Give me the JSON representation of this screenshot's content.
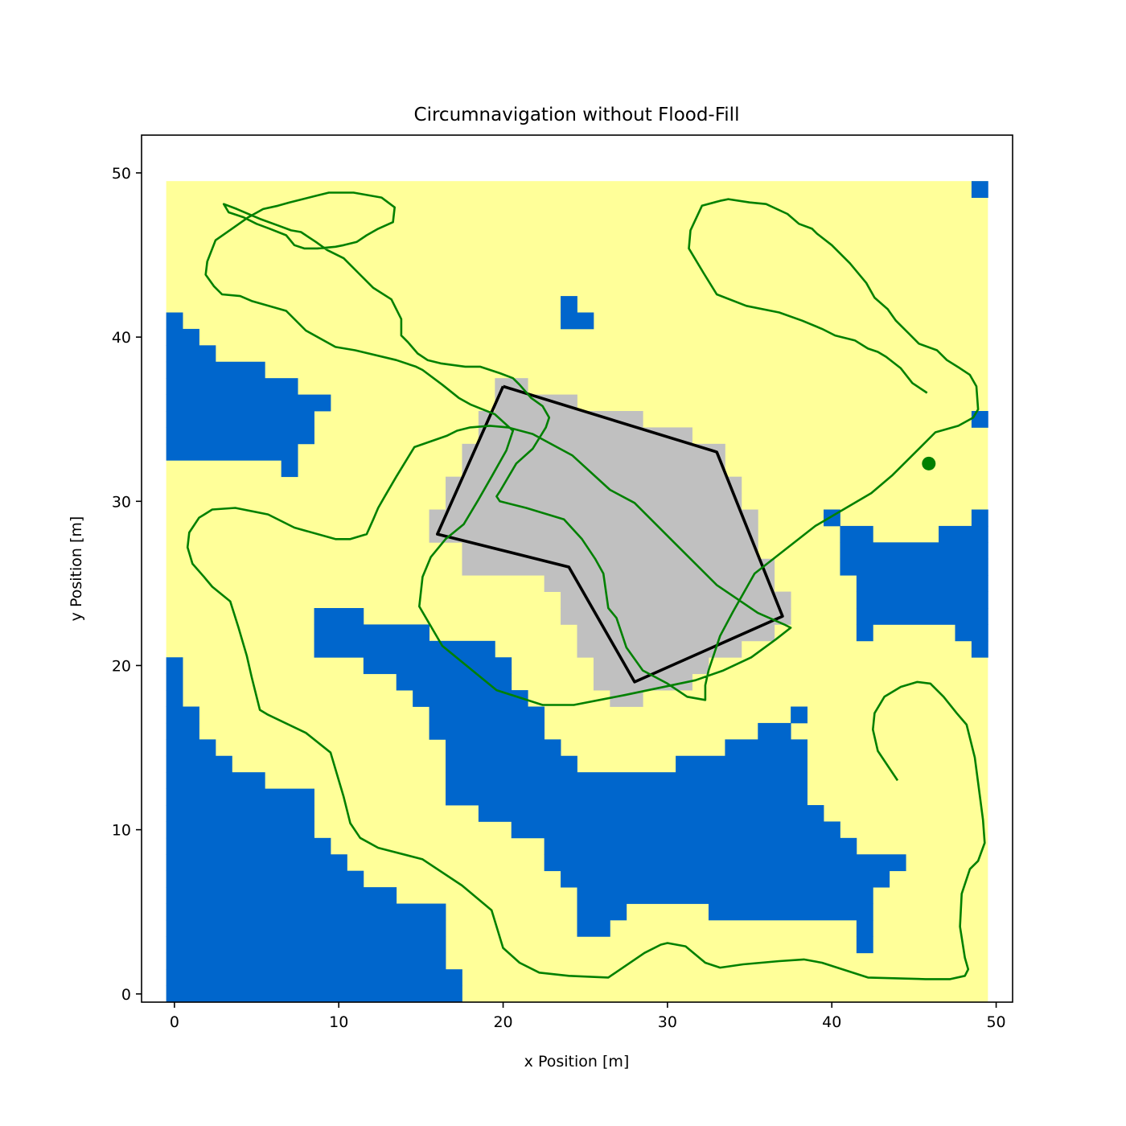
{
  "chart_data": {
    "type": "heatmap",
    "title": "Circumnavigation without Flood-Fill",
    "xlabel": "x Position [m]",
    "ylabel": "y Position [m]",
    "xlim": [
      -2,
      51
    ],
    "ylim": [
      -0.5,
      52.3
    ],
    "xticks": [
      0,
      10,
      20,
      30,
      40,
      50
    ],
    "yticks": [
      0,
      10,
      20,
      30,
      40,
      50
    ],
    "grid": false,
    "colors": {
      "free": "#ffff99",
      "water": "#0066cc",
      "obstacle": "#c0c0c0",
      "polygon": "#000000",
      "path": "#008000"
    },
    "grid_map": {
      "x_range": [
        0,
        49
      ],
      "y_range": [
        0,
        49
      ],
      "water_rows": {
        "49": [
          [
            49,
            49
          ]
        ],
        "41": [
          [
            0,
            0
          ]
        ],
        "40": [
          [
            0,
            1
          ]
        ],
        "39": [
          [
            0,
            2
          ]
        ],
        "38": [
          [
            0,
            5
          ]
        ],
        "37": [
          [
            0,
            7
          ]
        ],
        "36": [
          [
            0,
            9
          ]
        ],
        "35": [
          [
            0,
            8
          ],
          [
            49,
            49
          ]
        ],
        "34": [
          [
            0,
            8
          ]
        ],
        "33": [
          [
            0,
            7
          ]
        ],
        "32": [
          [
            7,
            7
          ]
        ],
        "29": [
          [
            40,
            40
          ],
          [
            49,
            49
          ]
        ],
        "28": [
          [
            41,
            42
          ],
          [
            47,
            49
          ]
        ],
        "27": [
          [
            41,
            49
          ]
        ],
        "26": [
          [
            41,
            49
          ]
        ],
        "25": [
          [
            42,
            49
          ]
        ],
        "24": [
          [
            42,
            49
          ]
        ],
        "23": [
          [
            42,
            49
          ]
        ],
        "22": [
          [
            42,
            42
          ],
          [
            48,
            49
          ]
        ],
        "21": [
          [
            49,
            49
          ]
        ],
        "20": [
          [
            0,
            0
          ]
        ],
        "19": [
          [
            0,
            0
          ]
        ],
        "18": [
          [
            0,
            0
          ]
        ],
        "17": [
          [
            0,
            1
          ]
        ],
        "16": [
          [
            0,
            1
          ]
        ],
        "15": [
          [
            0,
            2
          ]
        ],
        "14": [
          [
            0,
            3
          ]
        ],
        "13": [
          [
            0,
            5
          ]
        ],
        "12": [
          [
            0,
            8
          ]
        ],
        "11": [
          [
            0,
            8
          ]
        ],
        "10": [
          [
            0,
            8
          ]
        ],
        "9": [
          [
            0,
            9
          ]
        ],
        "8": [
          [
            0,
            10
          ]
        ],
        "7": [
          [
            0,
            11
          ]
        ],
        "6": [
          [
            0,
            13
          ]
        ],
        "5": [
          [
            0,
            16
          ]
        ],
        "4": [
          [
            0,
            16
          ]
        ],
        "3": [
          [
            0,
            16
          ]
        ],
        "2": [
          [
            0,
            16
          ]
        ],
        "1": [
          [
            0,
            17
          ]
        ],
        "0": [
          [
            0,
            17
          ]
        ]
      },
      "water_extra_rows": {
        "42": [
          [
            24,
            24
          ]
        ],
        "41": [
          [
            24,
            25
          ]
        ],
        "23": [
          [
            9,
            11
          ]
        ],
        "22": [
          [
            9,
            11
          ],
          [
            12,
            15
          ]
        ],
        "21": [
          [
            9,
            19
          ]
        ],
        "20": [
          [
            12,
            20
          ]
        ],
        "19": [
          [
            14,
            20
          ]
        ],
        "18": [
          [
            15,
            21
          ]
        ],
        "17": [
          [
            16,
            22
          ],
          [
            38,
            38
          ]
        ],
        "16": [
          [
            16,
            22
          ],
          [
            36,
            37
          ]
        ],
        "15": [
          [
            17,
            23
          ],
          [
            34,
            38
          ]
        ],
        "14": [
          [
            17,
            24
          ],
          [
            31,
            38
          ]
        ],
        "13": [
          [
            17,
            30
          ],
          [
            31,
            38
          ]
        ],
        "12": [
          [
            17,
            38
          ]
        ],
        "11": [
          [
            19,
            39
          ]
        ],
        "10": [
          [
            21,
            40
          ]
        ],
        "9": [
          [
            23,
            41
          ]
        ],
        "8": [
          [
            23,
            44
          ]
        ],
        "7": [
          [
            24,
            43
          ]
        ],
        "6": [
          [
            25,
            42
          ]
        ],
        "5": [
          [
            25,
            27
          ],
          [
            33,
            42
          ]
        ],
        "4": [
          [
            25,
            26
          ],
          [
            42,
            42
          ]
        ],
        "3": [
          [
            42,
            42
          ]
        ]
      },
      "obstacle_rows": {
        "37": [
          [
            20,
            21
          ]
        ],
        "36": [
          [
            20,
            24
          ]
        ],
        "35": [
          [
            19,
            28
          ]
        ],
        "34": [
          [
            19,
            31
          ]
        ],
        "33": [
          [
            18,
            33
          ]
        ],
        "32": [
          [
            18,
            33
          ]
        ],
        "31": [
          [
            17,
            34
          ]
        ],
        "30": [
          [
            17,
            34
          ]
        ],
        "29": [
          [
            16,
            35
          ]
        ],
        "28": [
          [
            16,
            35
          ]
        ],
        "27": [
          [
            18,
            35
          ]
        ],
        "26": [
          [
            18,
            36
          ]
        ],
        "25": [
          [
            23,
            36
          ]
        ],
        "24": [
          [
            24,
            37
          ]
        ],
        "23": [
          [
            24,
            37
          ]
        ],
        "22": [
          [
            25,
            36
          ]
        ],
        "21": [
          [
            25,
            34
          ]
        ],
        "20": [
          [
            26,
            32
          ]
        ],
        "19": [
          [
            26,
            31
          ]
        ],
        "18": [
          [
            27,
            28
          ]
        ]
      }
    },
    "obstacle_polygon": {
      "x": [
        20,
        33,
        37,
        28,
        24,
        16,
        20
      ],
      "y": [
        37,
        33,
        23,
        19,
        26,
        28,
        37
      ]
    },
    "path": {
      "x": [
        44,
        42.8,
        42.5,
        42.6,
        43.2,
        44.2,
        45.2,
        46,
        46.8,
        47.6,
        48.2,
        48.7,
        49.2,
        49.3,
        48.9,
        48.4,
        47.9,
        47.8,
        48.1,
        48.3,
        48.1,
        47.2,
        45.7,
        42.2,
        39.4,
        38.3,
        36.8,
        34.6,
        33.2,
        32.3,
        31.1,
        30,
        29.6,
        28.6,
        26.4,
        24,
        22.2,
        21,
        20,
        19.3,
        17.5,
        15.1,
        12.4,
        11.3,
        10.7,
        10.3,
        9.5,
        8,
        5.7,
        5.2,
        4.7,
        4.4,
        3.9,
        3.4,
        2.3,
        1.8,
        1.1,
        0.8,
        0.9,
        1.5,
        2.3,
        3.7,
        5.7,
        7.3,
        9.8,
        10.7,
        11.7,
        12.1,
        12.4,
        12.8,
        13.5,
        14.6,
        16.6,
        17.2,
        18,
        19.2,
        20.3,
        21.8,
        24.2,
        26.5,
        28,
        30.5,
        33,
        35.5,
        37.1,
        37.5,
        36.6,
        35.1,
        33.4,
        31.7,
        27.4,
        24.3,
        22.4,
        19.6,
        16.3,
        14.9,
        15.1,
        15.6,
        16.5,
        17.6,
        18.5,
        19.3,
        20.2,
        20.6,
        19.5,
        18,
        17.3,
        16.3,
        15.1,
        14.7,
        13.5,
        11,
        9.8,
        8,
        6.8,
        4.7,
        4,
        2.9,
        2.4,
        1.9,
        2,
        2.5,
        3.5,
        4.5,
        5.4,
        6.3,
        7,
        8.6,
        9.4,
        10.9,
        12.6,
        13.4,
        13.3,
        12.4,
        11.7,
        11.1,
        10.3,
        9.8,
        8.7,
        7.9,
        7.3,
        6.8,
        5.8,
        5,
        4.2,
        3.6,
        3.3,
        3,
        3.8,
        5.2,
        6.3,
        7.1,
        7.7,
        8.6,
        9.3,
        10.3,
        11.2,
        12.1,
        13.2,
        13.8,
        13.8,
        14.2,
        14.8,
        15.4,
        16.2,
        17.7,
        18.6,
        19.8,
        20.6,
        21,
        21.7,
        22.4,
        22.8,
        22.6,
        21.8,
        20.8,
        19.8,
        19.6,
        19.8,
        21.4,
        23.7,
        24.8,
        25.6,
        26.1,
        26.4,
        26.9,
        27.5,
        28.5,
        30,
        31.2,
        32.3,
        32.3,
        32.3,
        32.5,
        33.2,
        34,
        35.3,
        39,
        42.4,
        43.7,
        45.4,
        46.3,
        47.7,
        48.6,
        48.9,
        48.8,
        48.4,
        47.8,
        47,
        46.4,
        45.3,
        44.7,
        43.9,
        43.4,
        42.6,
        42.1,
        41.1,
        40,
        39.1,
        38.8,
        38,
        37.3,
        36,
        35,
        33.7,
        33.2,
        32.1,
        31.4,
        31.3,
        32.2,
        33,
        34.8,
        36.8,
        38.2,
        39.4,
        40.2,
        41.4,
        42.2,
        42.8,
        43.3,
        44.2,
        44.9,
        45.8
      ],
      "y": [
        13,
        14.8,
        16.1,
        17.1,
        18.1,
        18.7,
        19,
        18.9,
        18.1,
        17.1,
        16.4,
        14.4,
        10.6,
        9.2,
        8.1,
        7.6,
        6.1,
        4.1,
        2.2,
        1.5,
        1.1,
        0.9,
        0.9,
        1,
        1.9,
        2.1,
        2,
        1.8,
        1.6,
        1.9,
        2.9,
        3.1,
        3,
        2.5,
        1,
        1.1,
        1.3,
        1.9,
        2.8,
        5.1,
        6.6,
        8.2,
        8.9,
        9.5,
        10.4,
        12,
        14.7,
        15.9,
        17,
        17.3,
        19.3,
        20.6,
        22.3,
        23.9,
        24.8,
        25.4,
        26.2,
        27.2,
        28.1,
        29,
        29.5,
        29.6,
        29.2,
        28.4,
        27.7,
        27.7,
        28,
        28.9,
        29.6,
        30.3,
        31.5,
        33.3,
        34,
        34.3,
        34.5,
        34.6,
        34.5,
        34.1,
        32.8,
        30.7,
        29.9,
        27.4,
        24.9,
        23.2,
        22.5,
        22.3,
        21.6,
        20.5,
        19.7,
        19.1,
        18.2,
        17.6,
        17.6,
        18.5,
        21.2,
        23.6,
        25.4,
        26.6,
        27.7,
        28.6,
        30.1,
        31.5,
        33.1,
        34.3,
        35.3,
        35.9,
        36.3,
        37.1,
        38,
        38.2,
        38.6,
        39.2,
        39.4,
        40.4,
        41.6,
        42.2,
        42.5,
        42.6,
        43.1,
        43.8,
        44.6,
        45.9,
        46.6,
        47.3,
        47.8,
        48,
        48.2,
        48.6,
        48.8,
        48.8,
        48.5,
        47.9,
        47,
        46.6,
        46.2,
        45.8,
        45.6,
        45.5,
        45.4,
        45.4,
        45.6,
        46.2,
        46.6,
        46.9,
        47.3,
        47.5,
        47.6,
        48.1,
        47.8,
        47.2,
        46.8,
        46.5,
        46.4,
        45.8,
        45.3,
        44.8,
        43.9,
        43,
        42.3,
        41.1,
        40.1,
        39.7,
        39,
        38.6,
        38.4,
        38.2,
        38.2,
        37.8,
        37.5,
        37.1,
        36.3,
        35.8,
        35.1,
        34.5,
        33.2,
        32.3,
        30.6,
        30.3,
        30,
        29.6,
        28.9,
        27.7,
        26.5,
        25.6,
        23.5,
        22.9,
        21.1,
        19.7,
        18.9,
        18.1,
        17.9,
        18.2,
        18.8,
        19.7,
        21.8,
        23.3,
        25.6,
        28.5,
        30.5,
        31.6,
        33.3,
        34.2,
        34.6,
        35.1,
        35.6,
        37,
        37.7,
        38.1,
        38.6,
        39.2,
        39.6,
        40.2,
        41,
        41.7,
        42.4,
        43.3,
        44.5,
        45.6,
        46.3,
        46.6,
        46.9,
        47.5,
        48.1,
        48.2,
        48.4,
        48.3,
        48,
        46.5,
        45.4,
        43.9,
        42.6,
        41.9,
        41.5,
        41,
        40.5,
        40.1,
        39.8,
        39.3,
        39.1,
        38.8,
        38.1,
        37.2,
        36.6,
        35.7,
        34.4,
        33.6,
        33.3,
        33.1,
        32.8,
        32.2,
        32,
        32.2,
        32.5
      ]
    },
    "end_point": {
      "x": 45.9,
      "y": 32.3
    }
  }
}
